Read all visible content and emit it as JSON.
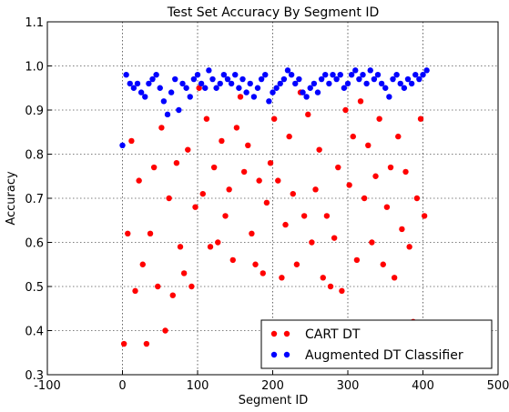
{
  "chart_data": {
    "type": "scatter",
    "title": "Test Set Accuracy By Segment ID",
    "xlabel": "Segment ID",
    "ylabel": "Accuracy",
    "xlim": [
      -100,
      500
    ],
    "ylim": [
      0.3,
      1.1
    ],
    "xticks": [
      -100,
      0,
      100,
      200,
      300,
      400,
      500
    ],
    "yticks": [
      0.3,
      0.4,
      0.5,
      0.6,
      0.7,
      0.8,
      0.9,
      {
        "value": 1,
        "label": "1.0"
      },
      1.1
    ],
    "grid": true,
    "legend": "lower right",
    "series": [
      {
        "name": "CART DT",
        "color": "#ff0000",
        "x": [
          2,
          7,
          12,
          17,
          22,
          27,
          32,
          37,
          42,
          47,
          52,
          57,
          62,
          67,
          72,
          77,
          82,
          87,
          92,
          97,
          102,
          107,
          112,
          117,
          122,
          127,
          132,
          137,
          142,
          147,
          152,
          157,
          162,
          167,
          172,
          177,
          182,
          187,
          192,
          197,
          202,
          207,
          212,
          217,
          222,
          227,
          232,
          237,
          242,
          247,
          252,
          257,
          262,
          267,
          272,
          277,
          282,
          287,
          292,
          297,
          302,
          307,
          312,
          317,
          322,
          327,
          332,
          337,
          342,
          347,
          352,
          357,
          362,
          367,
          372,
          377,
          382,
          387,
          392,
          397,
          402
        ],
        "values": [
          0.37,
          0.62,
          0.83,
          0.49,
          0.74,
          0.55,
          0.37,
          0.62,
          0.77,
          0.5,
          0.86,
          0.4,
          0.7,
          0.48,
          0.78,
          0.59,
          0.53,
          0.81,
          0.5,
          0.68,
          0.95,
          0.71,
          0.88,
          0.59,
          0.77,
          0.6,
          0.83,
          0.66,
          0.72,
          0.56,
          0.86,
          0.93,
          0.76,
          0.82,
          0.62,
          0.55,
          0.74,
          0.53,
          0.69,
          0.78,
          0.88,
          0.74,
          0.52,
          0.64,
          0.84,
          0.71,
          0.55,
          0.94,
          0.66,
          0.89,
          0.6,
          0.72,
          0.81,
          0.52,
          0.66,
          0.5,
          0.61,
          0.77,
          0.49,
          0.9,
          0.73,
          0.84,
          0.56,
          0.92,
          0.7,
          0.82,
          0.6,
          0.75,
          0.88,
          0.55,
          0.68,
          0.77,
          0.52,
          0.84,
          0.63,
          0.76,
          0.59,
          0.42,
          0.7,
          0.88,
          0.66
        ]
      },
      {
        "name": "Augmented DT Classifier",
        "color": "#0000ff",
        "x": [
          0,
          5,
          10,
          15,
          20,
          25,
          30,
          35,
          40,
          45,
          50,
          55,
          60,
          65,
          70,
          75,
          80,
          85,
          90,
          95,
          100,
          105,
          110,
          115,
          120,
          125,
          130,
          135,
          140,
          145,
          150,
          155,
          160,
          165,
          170,
          175,
          180,
          185,
          190,
          195,
          200,
          205,
          210,
          215,
          220,
          225,
          230,
          235,
          240,
          245,
          250,
          255,
          260,
          265,
          270,
          275,
          280,
          285,
          290,
          295,
          300,
          305,
          310,
          315,
          320,
          325,
          330,
          335,
          340,
          345,
          350,
          355,
          360,
          365,
          370,
          375,
          380,
          385,
          390,
          395,
          400,
          405
        ],
        "values": [
          0.82,
          0.98,
          0.96,
          0.95,
          0.96,
          0.94,
          0.93,
          0.96,
          0.97,
          0.98,
          0.95,
          0.92,
          0.89,
          0.94,
          0.97,
          0.9,
          0.96,
          0.95,
          0.93,
          0.97,
          0.98,
          0.96,
          0.95,
          0.99,
          0.97,
          0.95,
          0.96,
          0.98,
          0.97,
          0.96,
          0.98,
          0.95,
          0.97,
          0.94,
          0.96,
          0.93,
          0.95,
          0.97,
          0.98,
          0.92,
          0.94,
          0.95,
          0.96,
          0.97,
          0.99,
          0.98,
          0.96,
          0.97,
          0.94,
          0.93,
          0.95,
          0.96,
          0.94,
          0.97,
          0.98,
          0.96,
          0.98,
          0.97,
          0.98,
          0.95,
          0.96,
          0.98,
          0.99,
          0.97,
          0.98,
          0.96,
          0.99,
          0.97,
          0.98,
          0.96,
          0.95,
          0.93,
          0.97,
          0.98,
          0.96,
          0.95,
          0.97,
          0.96,
          0.98,
          0.97,
          0.98,
          0.99
        ]
      }
    ]
  }
}
